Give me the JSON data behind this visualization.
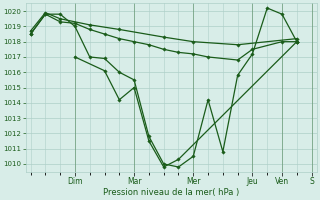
{
  "xlabel": "Pression niveau de la mer( hPa )",
  "ylim": [
    1009.5,
    1020.5
  ],
  "yticks": [
    1010,
    1011,
    1012,
    1013,
    1014,
    1015,
    1016,
    1017,
    1018,
    1019,
    1020
  ],
  "day_labels": [
    "Dim",
    "Mar",
    "Mer",
    "Jeu",
    "Ven",
    "S"
  ],
  "bg_color": "#d8ede8",
  "grid_color": "#aecfc8",
  "line_color": "#1a5c1a",
  "line_width": 0.9,
  "marker_size": 1.8,
  "lines": [
    {
      "x": [
        0,
        6,
        12,
        18,
        24,
        30,
        36,
        42,
        48,
        54,
        60,
        66,
        72,
        78,
        84,
        90,
        96,
        102,
        108
      ],
      "y": [
        1018.5,
        1019.8,
        1019.8,
        1019.0,
        1017.0,
        1016.9,
        1016.0,
        1015.5,
        1011.8,
        1010.0,
        1009.8,
        1010.5,
        1014.2,
        1010.8,
        1015.8,
        1017.2,
        1020.2,
        1019.8,
        1018.0
      ]
    },
    {
      "x": [
        0,
        6,
        12,
        18,
        24,
        30,
        36,
        42,
        48,
        54,
        60,
        66,
        72,
        84,
        90,
        102,
        108
      ],
      "y": [
        1018.5,
        1019.8,
        1019.3,
        1019.2,
        1018.8,
        1018.5,
        1018.2,
        1018.0,
        1017.8,
        1017.5,
        1017.3,
        1017.2,
        1017.0,
        1016.8,
        1017.5,
        1018.0,
        1018.0
      ]
    },
    {
      "x": [
        0,
        6,
        12,
        24,
        36,
        54,
        66,
        84,
        108
      ],
      "y": [
        1018.7,
        1019.9,
        1019.5,
        1019.1,
        1018.8,
        1018.3,
        1018.0,
        1017.8,
        1018.2
      ]
    },
    {
      "x": [
        18,
        30,
        36,
        42,
        48,
        54,
        60,
        108
      ],
      "y": [
        1017.0,
        1016.1,
        1014.2,
        1015.0,
        1011.5,
        1009.8,
        1010.3,
        1018.0
      ]
    }
  ],
  "day_ticks_x": [
    18,
    42,
    66,
    90,
    102,
    114
  ],
  "xlim": [
    -2,
    116
  ],
  "day_vlines": [
    18,
    42,
    66,
    90,
    102,
    114
  ]
}
